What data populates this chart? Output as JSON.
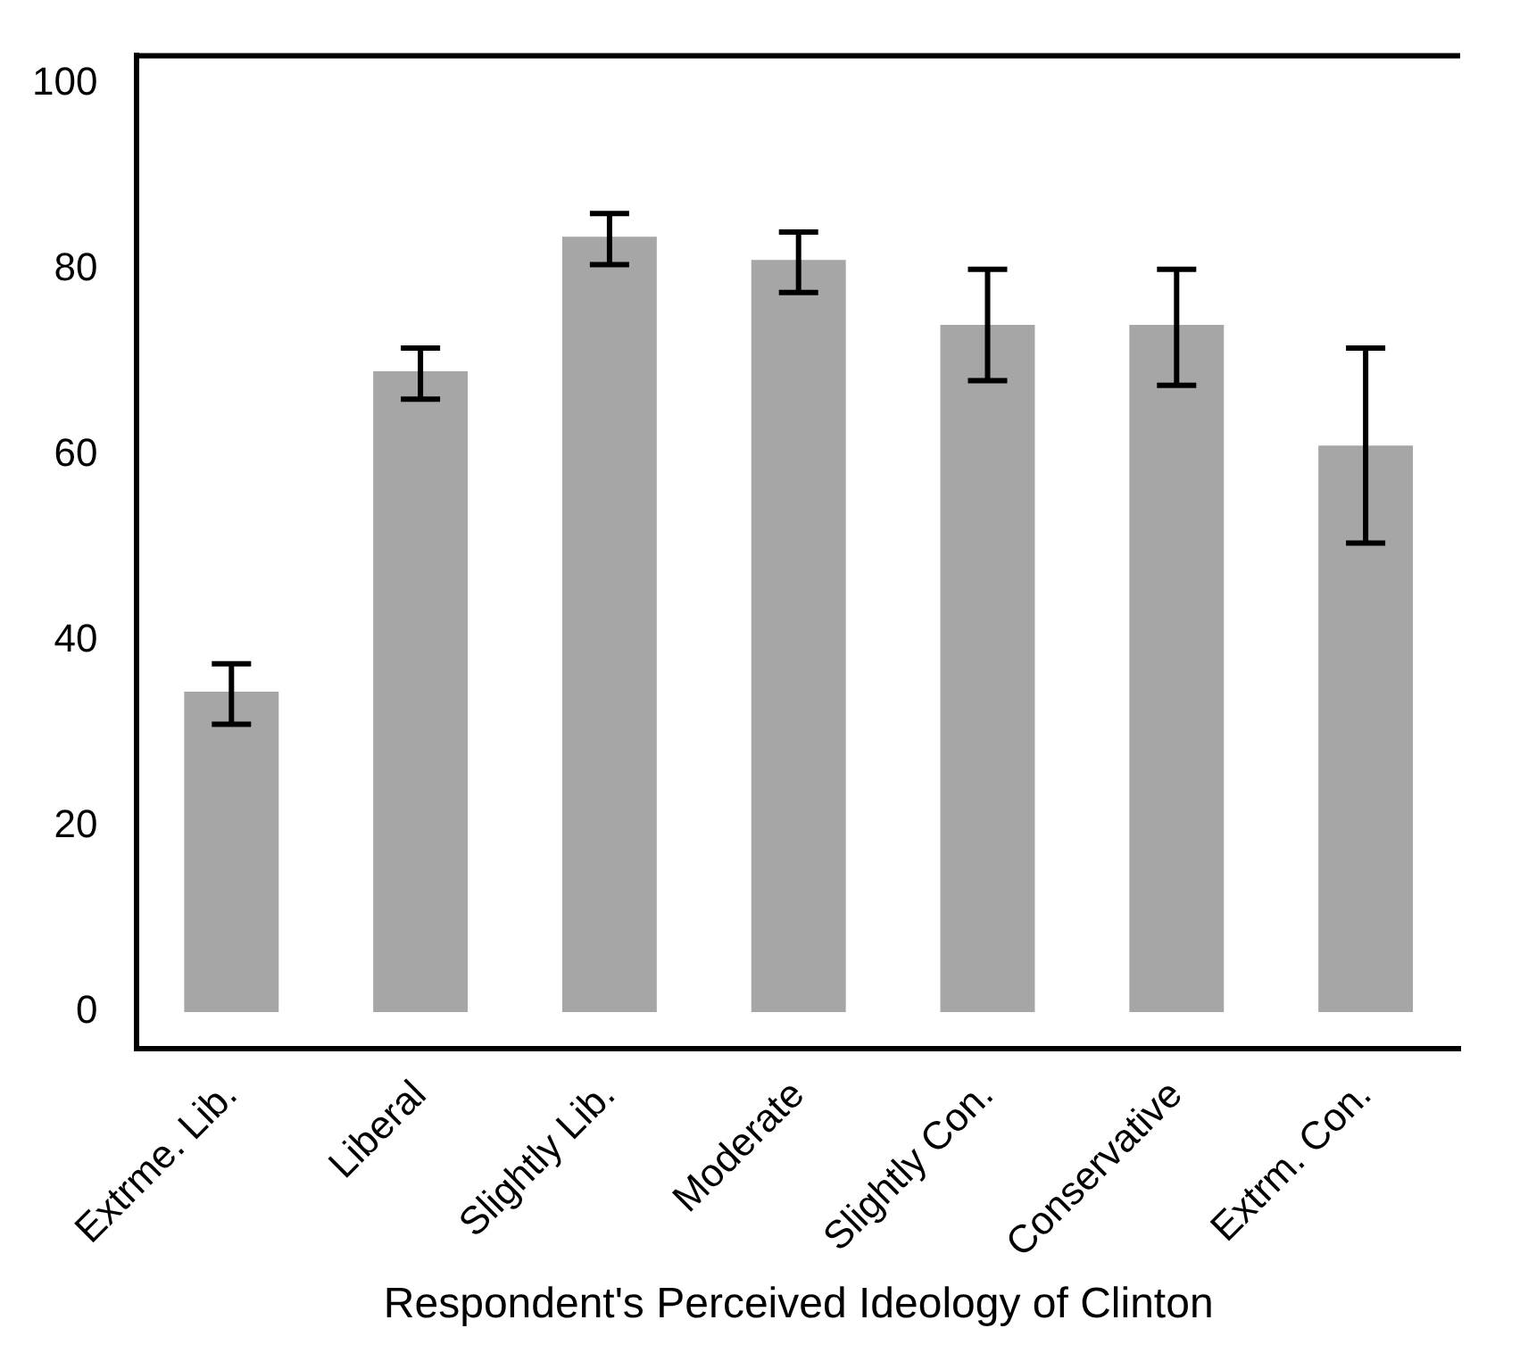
{
  "chart_data": {
    "type": "bar",
    "xlabel": "Respondent's Perceived Ideology of Clinton",
    "categories": [
      "Extrme. Lib.",
      "Liberal",
      "Slightly Lib.",
      "Moderate",
      "Slightly Con.",
      "Conservative",
      "Extrm. Con."
    ],
    "values": [
      34.5,
      69,
      83.5,
      81,
      74,
      74,
      61
    ],
    "errors": [
      [
        31,
        37.5
      ],
      [
        66,
        71.5
      ],
      [
        80.5,
        86
      ],
      [
        77.5,
        84
      ],
      [
        68,
        80
      ],
      [
        67.5,
        80
      ],
      [
        50.5,
        71.5
      ]
    ],
    "color": "#a6a6a6",
    "ylim": [
      -4,
      103
    ],
    "yticks": [
      0,
      20,
      40,
      60,
      80,
      100
    ],
    "grid": false
  }
}
